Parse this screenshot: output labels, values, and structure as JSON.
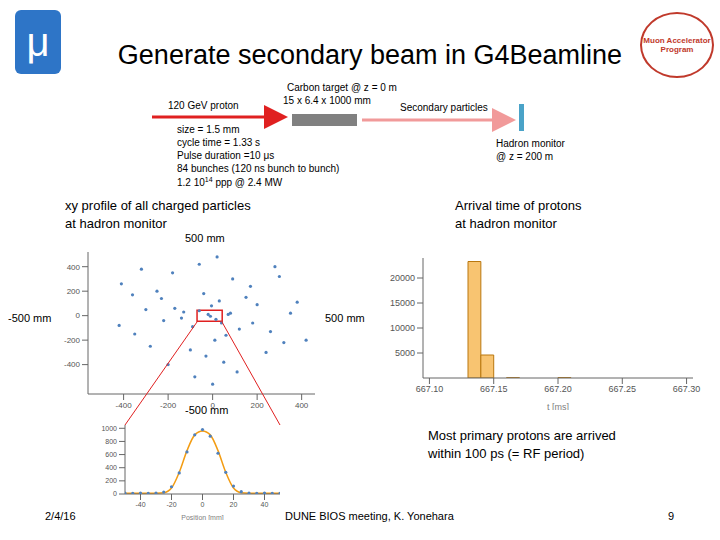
{
  "slide": {
    "logo_left": "μ",
    "logo_right": [
      "Muon Accelerator",
      "Program"
    ],
    "title": "Generate secondary beam in G4Beamline",
    "diagram": {
      "beam": "120 GeV proton",
      "target": [
        "Carbon target @ z = 0 m",
        "15 x 6.4 x 1000 mm"
      ],
      "secondary": "Secondary particles",
      "monitor": [
        "Hadron monitor",
        "@ z = 200 m"
      ],
      "parameters": [
        "size = 1.5 mm",
        "cycle time = 1.33 s",
        "Pulse duration =10 μs",
        "84 bunches (120 ns bunch to bunch)",
        [
          "1.2 10",
          "14",
          " ppp @ 2.4 MW"
        ]
      ]
    },
    "left_caption": [
      "xy profile of all charged particles",
      "at hadron monitor"
    ],
    "right_caption": [
      "Arrival time of protons",
      "at hadron monitor"
    ],
    "extent_labels": {
      "top": "500 mm",
      "left": "-500 mm",
      "right": "500 mm",
      "bottom": "-500 mm"
    },
    "note": [
      "Most primary protons are arrived",
      "within 100 ps (= RF period)"
    ],
    "footer": {
      "date": "2/4/16",
      "event": "DUNE BIOS meeting, K. Yonehara",
      "page": "9"
    }
  },
  "chart_data": [
    {
      "type": "scatter",
      "xlim": [
        -560,
        460
      ],
      "ylim": [
        -640,
        520
      ],
      "xticks": [
        -400,
        -200,
        0,
        200,
        400
      ],
      "yticks": [
        -400,
        -200,
        0,
        200,
        400
      ],
      "color": "#4f81bd",
      "x": [
        -20,
        15,
        -60,
        40,
        -5,
        80,
        -90,
        30,
        -130,
        120,
        -170,
        60,
        10,
        -40,
        150,
        -220,
        200,
        -250,
        260,
        -300,
        320,
        -350,
        380,
        -410,
        -100,
        90,
        -30,
        50,
        -180,
        170,
        -280,
        240,
        -60,
        110,
        -140,
        20,
        -360,
        300,
        -200,
        0,
        70,
        -80,
        180,
        -230,
        350,
        -420,
        420,
        -320,
        280,
        -10
      ],
      "y": [
        10,
        -30,
        40,
        -60,
        80,
        20,
        -90,
        120,
        30,
        -110,
        60,
        -160,
        -200,
        180,
        150,
        -40,
        90,
        200,
        -130,
        50,
        -220,
        -150,
        110,
        260,
        -280,
        300,
        -330,
        -380,
        350,
        240,
        -250,
        -300,
        420,
        -460,
        -20,
        480,
        170,
        320,
        -400,
        -560,
        10,
        -500,
        -60,
        140,
        20,
        -80,
        -200,
        380,
        400,
        -5
      ],
      "zoom_box": {
        "x": [
          -70,
          43
        ],
        "y": [
          -45,
          45
        ],
        "color": "#e02020"
      }
    },
    {
      "type": "histogram",
      "bins": [
        667.1,
        667.11,
        667.12,
        667.13,
        667.14,
        667.15,
        667.16,
        667.17,
        667.18,
        667.19,
        667.2,
        667.21,
        667.22,
        667.23,
        667.24,
        667.25,
        667.26,
        667.27,
        667.28,
        667.29,
        667.3
      ],
      "counts": [
        0,
        0,
        0,
        23300,
        4600,
        0,
        60,
        0,
        0,
        0,
        80,
        0,
        0,
        0,
        0,
        0,
        0,
        0,
        0,
        0
      ],
      "xlim": [
        667.095,
        667.305
      ],
      "xticks": [
        {
          "value": 667.1,
          "label": "667.10"
        },
        667.15,
        {
          "value": 667.2,
          "label": "667.20"
        },
        667.25,
        {
          "value": 667.3,
          "label": "667.30"
        }
      ],
      "ylim": [
        0,
        24000
      ],
      "yticks": [
        5000,
        10000,
        15000,
        20000
      ],
      "xlabel": "t [ms]",
      "color": "#f8c471"
    },
    {
      "type": "line",
      "x": [
        -50,
        -45,
        -40,
        -35,
        -30,
        -25,
        -20,
        -15,
        -10,
        -5,
        0,
        5,
        10,
        15,
        20,
        25,
        30,
        35,
        40,
        45,
        50
      ],
      "series": [
        {
          "type": "scatter",
          "color": "#4f81bd",
          "values": [
            12,
            10,
            14,
            8,
            15,
            30,
            110,
            320,
            640,
            900,
            980,
            880,
            620,
            330,
            120,
            35,
            12,
            9,
            14,
            11,
            10
          ]
        },
        {
          "type": "line",
          "color": "#f39c12",
          "values": [
            10,
            10,
            10,
            10,
            11,
            18,
            90,
            330,
            660,
            900,
            960,
            900,
            660,
            330,
            90,
            18,
            11,
            10,
            10,
            10,
            10
          ]
        }
      ],
      "xlim": [
        -50,
        50
      ],
      "xticks": [
        -40,
        -20,
        0,
        20,
        40
      ],
      "ylim": [
        0,
        1050
      ],
      "yticks": [
        0,
        200,
        400,
        600,
        800,
        1000
      ],
      "xlabel": "Position [mm]"
    }
  ]
}
